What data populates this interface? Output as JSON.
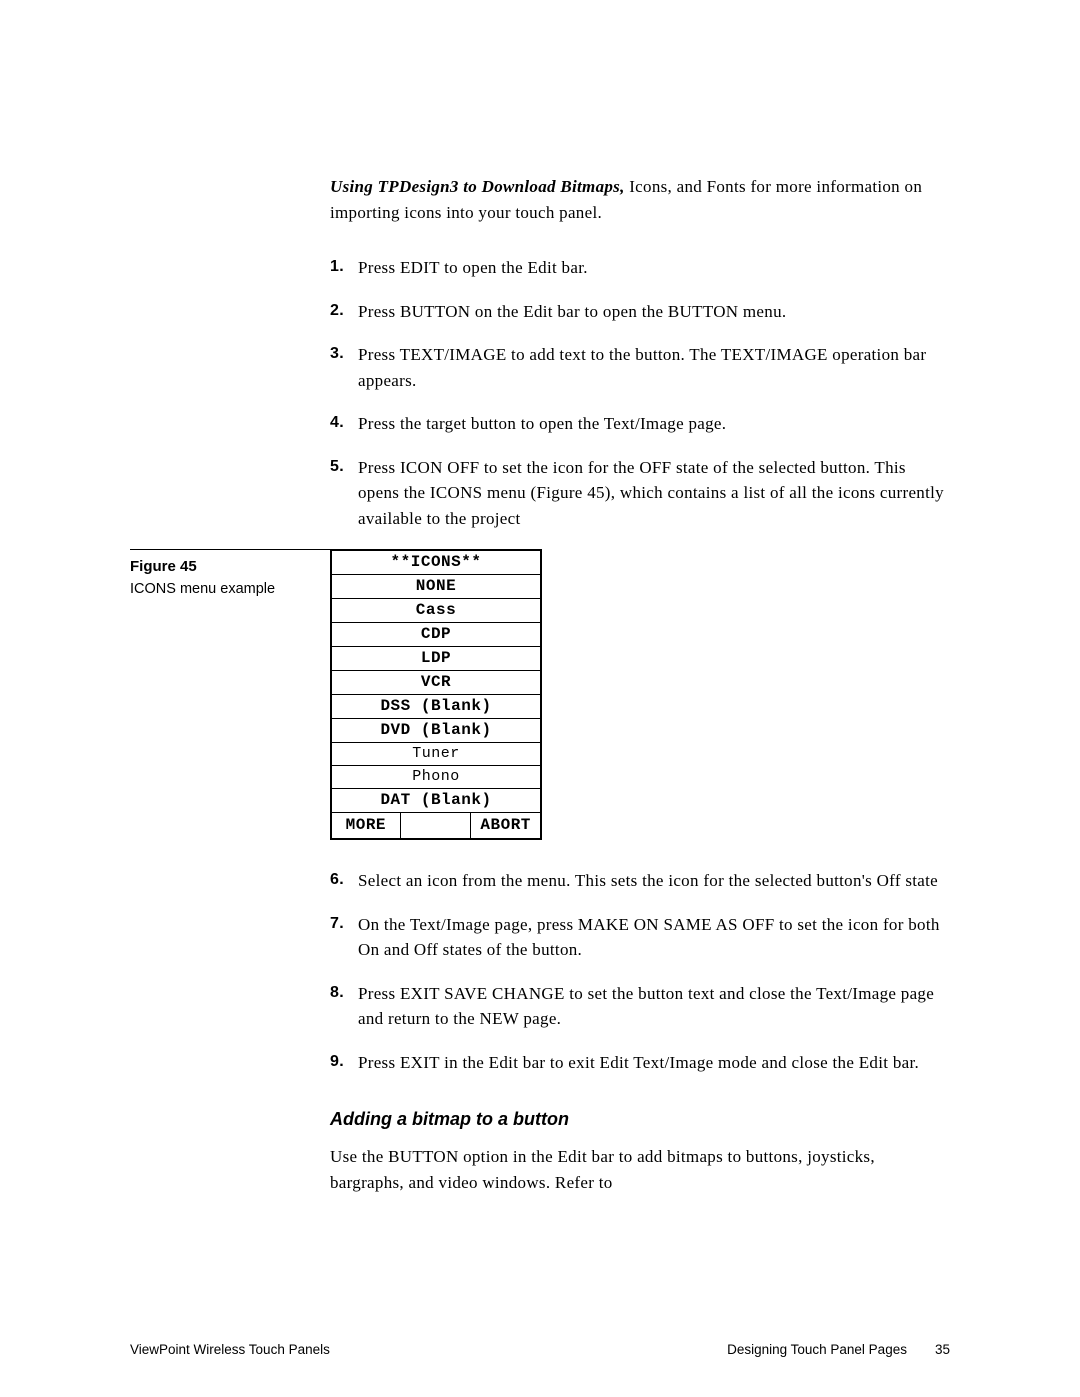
{
  "intro": {
    "lead": "Using TPDesign3 to Download Bitmaps,",
    "rest": " Icons, and Fonts for more information on importing icons into your touch panel."
  },
  "steps_a": [
    "Press EDIT to open the Edit bar.",
    "Press BUTTON on the Edit bar to open the BUTTON menu.",
    "Press TEXT/IMAGE to add text to the button. The TEXT/IMAGE operation bar appears.",
    "Press the target button to open the Text/Image page.",
    "Press ICON OFF to set the icon for the OFF state of the selected button. This opens the ICONS menu (Figure 45), which contains a list of all the icons currently available to the project"
  ],
  "figure": {
    "label": "Figure 45",
    "desc": "ICONS menu example"
  },
  "icons_menu": {
    "title": "**ICONS**",
    "rows": [
      "NONE",
      "Cass",
      "CDP",
      "LDP",
      "VCR",
      "DSS (Blank)",
      "DVD (Blank)",
      "Tuner",
      "Phono",
      "DAT (Blank)"
    ],
    "more": "MORE",
    "abort": "ABORT"
  },
  "steps_b": [
    "Select an icon from the menu. This sets the icon for the selected button's Off state",
    "On the Text/Image page, press MAKE ON SAME AS OFF to set the icon for both On and Off states of the button.",
    "Press EXIT SAVE CHANGE to set the button text and close the Text/Image page and return to the NEW page.",
    "Press EXIT in the Edit bar to exit Edit Text/Image mode and close the Edit bar."
  ],
  "subhead": "Adding a bitmap to a button",
  "body_para": "Use the BUTTON option in the Edit bar to add bitmaps to buttons, joysticks, bargraphs, and video windows. Refer to",
  "footer": {
    "left": "ViewPoint Wireless Touch Panels",
    "section": "Designing Touch Panel Pages",
    "page": "35"
  },
  "style": {
    "menu_font": "Courier New",
    "body_font": "Georgia",
    "sans_font": "Arial"
  }
}
